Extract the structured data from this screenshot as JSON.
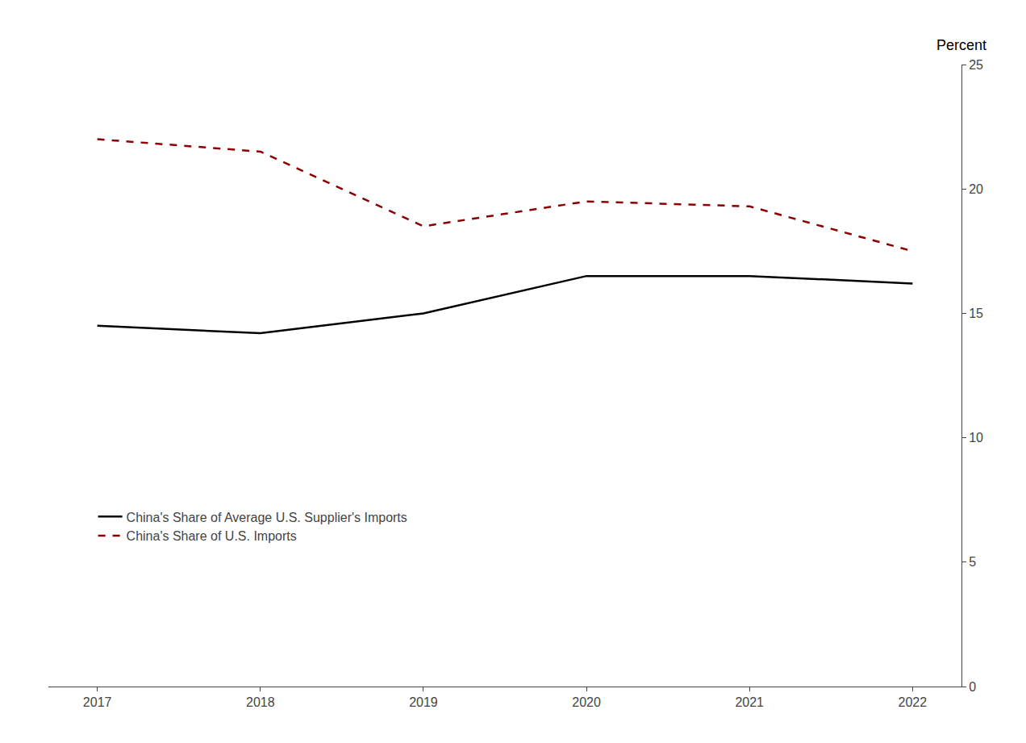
{
  "chart_data": {
    "type": "line",
    "ylabel": "Percent",
    "x": [
      2017,
      2018,
      2019,
      2020,
      2021,
      2022
    ],
    "series": [
      {
        "name": "China's Share of Average U.S. Supplier's Imports",
        "color": "#000000",
        "line_style": "solid",
        "values": [
          14.5,
          14.2,
          15.0,
          16.5,
          16.5,
          16.2
        ]
      },
      {
        "name": "China's Share of U.S. Imports",
        "color": "#8B0000",
        "line_style": "dashed",
        "values": [
          22.0,
          21.5,
          18.5,
          19.5,
          19.3,
          17.5
        ]
      }
    ],
    "xlim": [
      2016.7,
      2022.3
    ],
    "xticks": [
      2017,
      2018,
      2019,
      2020,
      2021,
      2022
    ],
    "ylim": [
      0,
      25
    ],
    "yticks": [
      0,
      5,
      10,
      15,
      20,
      25
    ],
    "grid": false,
    "legend": "lower left"
  }
}
